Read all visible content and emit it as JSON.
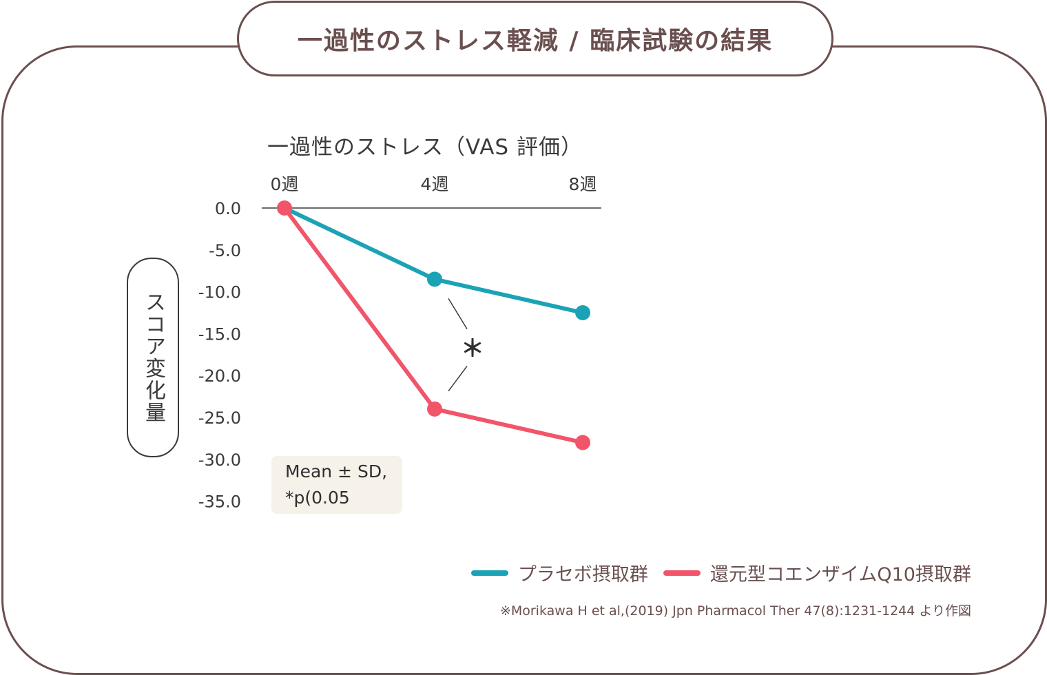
{
  "header": {
    "title": "一過性のストレス軽減 / 臨床試験の結果"
  },
  "chart_data": {
    "type": "line",
    "title": "一過性のストレス（VAS 評価）",
    "ylabel": "スコア変化量",
    "xlabel": "",
    "categories": [
      "0週",
      "4週",
      "8週"
    ],
    "x_axis_position": "top",
    "yticks": [
      "0.0",
      "-5.0",
      "-10.0",
      "-15.0",
      "-20.0",
      "-25.0",
      "-30.0",
      "-35.0"
    ],
    "ylim": [
      -35,
      0
    ],
    "grid": false,
    "series": [
      {
        "name": "プラセボ摂取群",
        "color": "#1ba3b5",
        "values": [
          0,
          -8.5,
          -12.5
        ]
      },
      {
        "name": "還元型コエンザイムQ10摂取群",
        "color": "#f2556a",
        "values": [
          0,
          -24,
          -28
        ]
      }
    ],
    "annotations": [
      {
        "text": "＊",
        "between_category": "4週"
      }
    ],
    "note": [
      "Mean ± SD,",
      "*p(0.05"
    ],
    "legend_position": "bottom-right"
  },
  "source": "※Morikawa H et al,(2019) Jpn Pharmacol Ther 47(8):1231-1244 より作図"
}
